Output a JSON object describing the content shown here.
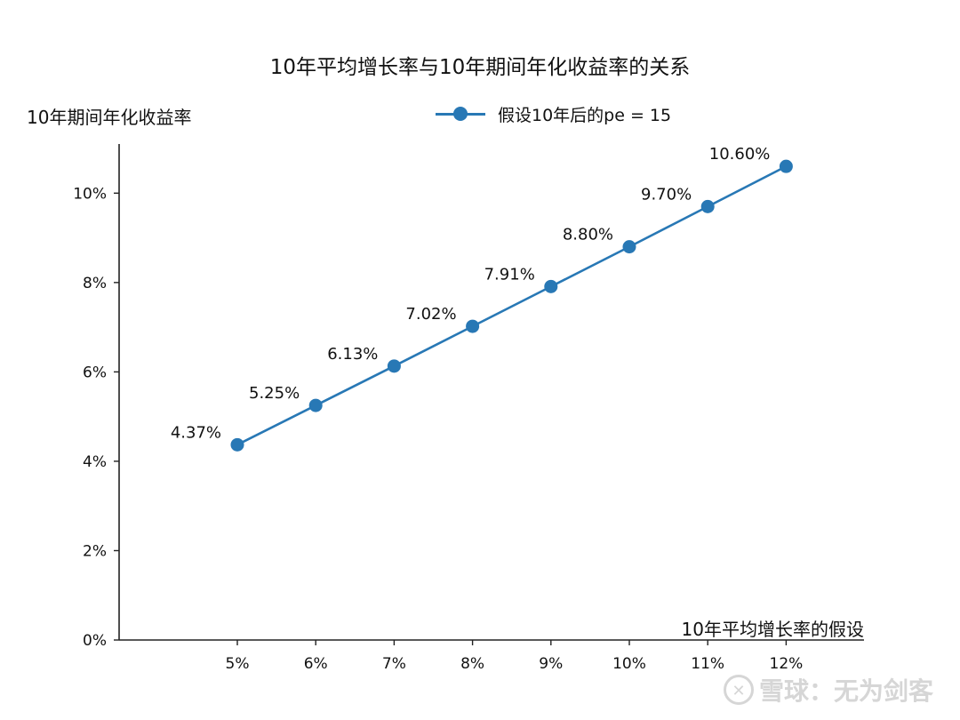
{
  "chart_data": {
    "type": "line",
    "title": "10年平均增长率与10年期间年化收益率的关系",
    "xlabel": "10年平均增长率的假设",
    "ylabel": "10年期间年化收益率",
    "categories": [
      "5%",
      "6%",
      "7%",
      "8%",
      "9%",
      "10%",
      "11%",
      "12%"
    ],
    "series": [
      {
        "name": "假设10年后的pe = 15",
        "values": [
          4.37,
          5.25,
          6.13,
          7.02,
          7.91,
          8.8,
          9.7,
          10.6
        ],
        "data_labels": [
          "4.37%",
          "5.25%",
          "6.13%",
          "7.02%",
          "7.91%",
          "8.80%",
          "9.70%",
          "10.60%"
        ]
      }
    ],
    "y_ticks": [
      0,
      2,
      4,
      6,
      8,
      10
    ],
    "y_tick_labels": [
      "0%",
      "2%",
      "4%",
      "6%",
      "8%",
      "10%"
    ],
    "ylim": [
      0,
      11.1
    ],
    "grid": false,
    "legend_position": "top-center",
    "colors": {
      "series": "#2878b5",
      "axis": "#222222"
    }
  },
  "watermark": {
    "icon": "xueqiu-logo-icon",
    "text": "雪球：无为剑客"
  }
}
